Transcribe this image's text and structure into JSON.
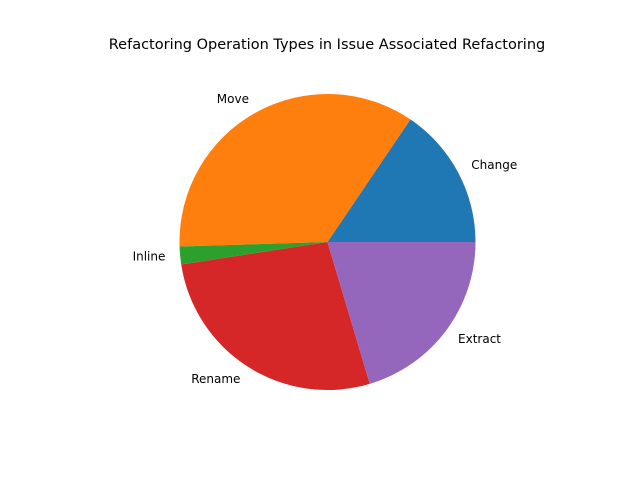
{
  "chart_data": {
    "type": "pie",
    "title": "Refactoring Operation Types in Issue Associated Refactoring",
    "categories": [
      "Change",
      "Move",
      "Inline",
      "Rename",
      "Extract"
    ],
    "values": [
      16,
      36,
      2,
      28,
      21
    ],
    "colors": [
      "#1f77b4",
      "#ff7f0e",
      "#2ca02c",
      "#d62728",
      "#9467bd"
    ],
    "start_angle_deg": 0,
    "direction": "counterclockwise",
    "legend": "none"
  }
}
